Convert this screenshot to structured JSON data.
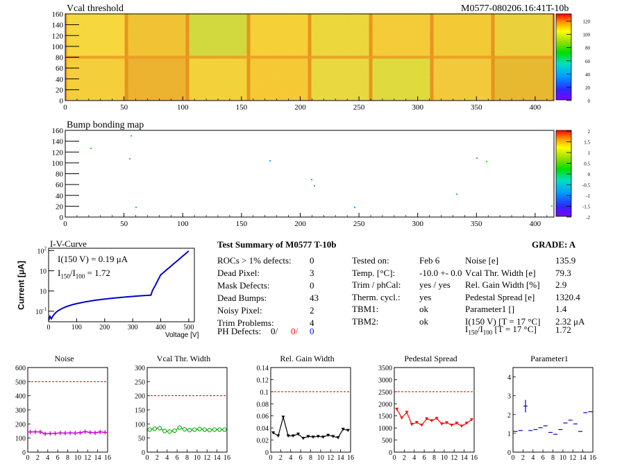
{
  "header": {
    "module_id": "M0577-080206.16:41T-10b"
  },
  "maps": [
    {
      "title": "Vcal threshold",
      "x_ticks": [
        "0",
        "50",
        "100",
        "150",
        "200",
        "250",
        "300",
        "350",
        "400"
      ],
      "y_ticks": [
        "0",
        "20",
        "40",
        "60",
        "80",
        "100",
        "120",
        "140",
        "160"
      ],
      "z_ticks": [
        "0",
        "20",
        "40",
        "60",
        "80",
        "100",
        "120"
      ]
    },
    {
      "title": "Bump bonding map",
      "x_ticks": [
        "0",
        "50",
        "100",
        "150",
        "200",
        "250",
        "300",
        "350",
        "400"
      ],
      "y_ticks": [
        "0",
        "20",
        "40",
        "60",
        "80",
        "100",
        "120",
        "140",
        "160"
      ],
      "z_ticks": [
        "-2",
        "-1.5",
        "-1",
        "-0.5",
        "0",
        "0.5",
        "1",
        "1.5",
        "2"
      ]
    }
  ],
  "iv": {
    "title": "I-V-Curve",
    "ylabel": "Current [μA]",
    "xlabel": "Voltage [V]",
    "x_ticks": [
      "0",
      "100",
      "200",
      "300",
      "400",
      "500"
    ],
    "y_tick_base": "10",
    "y_tick_exps": [
      "-1",
      "",
      "",
      "2"
    ],
    "ann1": "I(150 V) = 0.19 μA",
    "ann2_pre": "I",
    "ann2_sub1": "150",
    "ann2_mid": "/I",
    "ann2_sub2": "100",
    "ann2_post": " =  1.72"
  },
  "summary": {
    "title": "Test Summary of M0577     T-10b",
    "grade": "GRADE:  A",
    "left_rows": [
      {
        "label": "ROCs > 1% defects:",
        "value": "0"
      },
      {
        "label": "Dead Pixel:",
        "value": "3"
      },
      {
        "label": "Mask Defects:",
        "value": "0"
      },
      {
        "label": "Dead Bumps:",
        "value": "43"
      },
      {
        "label": "Noisy Pixel:",
        "value": "2"
      },
      {
        "label": "Trim Problems:",
        "value": "4"
      }
    ],
    "ph_label": "PH Defects:",
    "ph_values": [
      "0/",
      "0/",
      "0"
    ],
    "ph_colors": [
      "#000000",
      "#ff0000",
      "#0000ff"
    ],
    "mid_rows": [
      {
        "label": "Tested on:",
        "value": "Feb 6"
      },
      {
        "label": "Temp. [°C]:",
        "value": "-10.0 +- 0.0"
      },
      {
        "label": "Trim / phCal:",
        "value": "yes / yes"
      },
      {
        "label": "Therm. cycl.:",
        "value": "yes"
      },
      {
        "label": "TBM1:",
        "value": "ok"
      },
      {
        "label": "TBM2:",
        "value": "ok"
      }
    ],
    "right_rows": [
      {
        "label": "Noise [e]",
        "value": "135.9"
      },
      {
        "label": "Vcal Thr. Width [e]",
        "value": "79.3"
      },
      {
        "label": "Rel. Gain Width [%]",
        "value": "2.9"
      },
      {
        "label": "Pedestal Spread [e]",
        "value": "1320.4"
      },
      {
        "label": "Parameter1 []",
        "value": "1.4"
      },
      {
        "label": "I(150 V) [T = 17 °C]",
        "value": "2.32 μA"
      }
    ],
    "ratio_label": {
      "pre": "I",
      "sub1": "150",
      "mid": "/I",
      "sub2": "100",
      "post": " [T = 17 °C]"
    },
    "ratio_value": "1.72"
  },
  "chart_data": [
    {
      "type": "line",
      "title": "Noise",
      "color": "#cc00cc",
      "marker": "cross",
      "x": [
        0,
        1,
        2,
        3,
        4,
        5,
        6,
        7,
        8,
        9,
        10,
        11,
        12,
        13,
        14,
        15
      ],
      "y": [
        143,
        144,
        143,
        130,
        132,
        133,
        136,
        135,
        136,
        135,
        138,
        145,
        140,
        137,
        143,
        140
      ],
      "xlim": [
        0,
        16
      ],
      "ylim": [
        0,
        600
      ],
      "ref_line": 500,
      "x_ticks": [
        "0",
        "2",
        "4",
        "6",
        "8",
        "10",
        "12",
        "14",
        "16"
      ],
      "y_ticks": [
        "0",
        "100",
        "200",
        "300",
        "400",
        "500",
        "600"
      ]
    },
    {
      "type": "line",
      "title": "Vcal Thr. Width",
      "color": "#00aa00",
      "marker": "circle",
      "x": [
        0,
        1,
        2,
        3,
        4,
        5,
        6,
        7,
        8,
        9,
        10,
        11,
        12,
        13,
        14,
        15
      ],
      "y": [
        80,
        83,
        85,
        75,
        73,
        76,
        87,
        81,
        78,
        80,
        82,
        80,
        78,
        80,
        80,
        80
      ],
      "xlim": [
        0,
        16
      ],
      "ylim": [
        0,
        300
      ],
      "ref_line": 200,
      "x_ticks": [
        "0",
        "2",
        "4",
        "6",
        "8",
        "10",
        "12",
        "14",
        "16"
      ],
      "y_ticks": [
        "0",
        "50",
        "100",
        "150",
        "200",
        "250",
        "300"
      ]
    },
    {
      "type": "line",
      "title": "Rel. Gain Width",
      "color": "#000000",
      "marker": "triangle",
      "x": [
        0,
        1,
        2,
        3,
        4,
        5,
        6,
        7,
        8,
        9,
        10,
        11,
        12,
        13,
        14,
        15
      ],
      "y": [
        0.032,
        0.027,
        0.058,
        0.027,
        0.027,
        0.03,
        0.023,
        0.026,
        0.025,
        0.026,
        0.025,
        0.028,
        0.026,
        0.024,
        0.038,
        0.036
      ],
      "xlim": [
        0,
        16
      ],
      "ylim": [
        0,
        0.14
      ],
      "ref_line": 0.1,
      "x_ticks": [
        "0",
        "2",
        "4",
        "6",
        "8",
        "10",
        "12",
        "14",
        "16"
      ],
      "y_ticks": [
        "0",
        "0.02",
        "0.04",
        "0.06",
        "0.08",
        "0.1",
        "0.12",
        "0.14"
      ]
    },
    {
      "type": "line",
      "title": "Pedestal Spread",
      "color": "#ff0000",
      "marker": "triangle",
      "x": [
        0,
        1,
        2,
        3,
        4,
        5,
        6,
        7,
        8,
        9,
        10,
        11,
        12,
        13,
        14,
        15
      ],
      "y": [
        1780,
        1420,
        1650,
        1150,
        1230,
        1120,
        1380,
        1300,
        1400,
        1170,
        1220,
        1120,
        1200,
        1080,
        1200,
        1340
      ],
      "xlim": [
        0,
        16
      ],
      "ylim": [
        0,
        3500
      ],
      "ref_line": 2500,
      "x_ticks": [
        "0",
        "2",
        "4",
        "6",
        "8",
        "10",
        "12",
        "14",
        "16"
      ],
      "y_ticks": [
        "0",
        "500",
        "1000",
        "1500",
        "2000",
        "2500",
        "3000",
        "3500"
      ]
    },
    {
      "type": "scatter",
      "title": "Parameter1",
      "color": "#0000cc",
      "marker": "errorbar",
      "x": [
        0,
        1,
        2,
        3,
        4,
        5,
        6,
        7,
        8,
        9,
        10,
        11,
        12,
        13,
        14,
        15
      ],
      "y": [
        1.1,
        1.15,
        2.45,
        1.15,
        1.2,
        1.3,
        1.4,
        1.05,
        0.95,
        1.2,
        1.55,
        1.7,
        1.5,
        1.1,
        2.1,
        2.15
      ],
      "xlim": [
        0,
        16
      ],
      "ylim": [
        0,
        4.5
      ],
      "ref_line": null,
      "x_ticks": [
        "0",
        "2",
        "4",
        "6",
        "8",
        "10",
        "12",
        "14",
        "16"
      ],
      "y_ticks": [
        "0",
        "1",
        "2",
        "3",
        "4"
      ]
    }
  ]
}
